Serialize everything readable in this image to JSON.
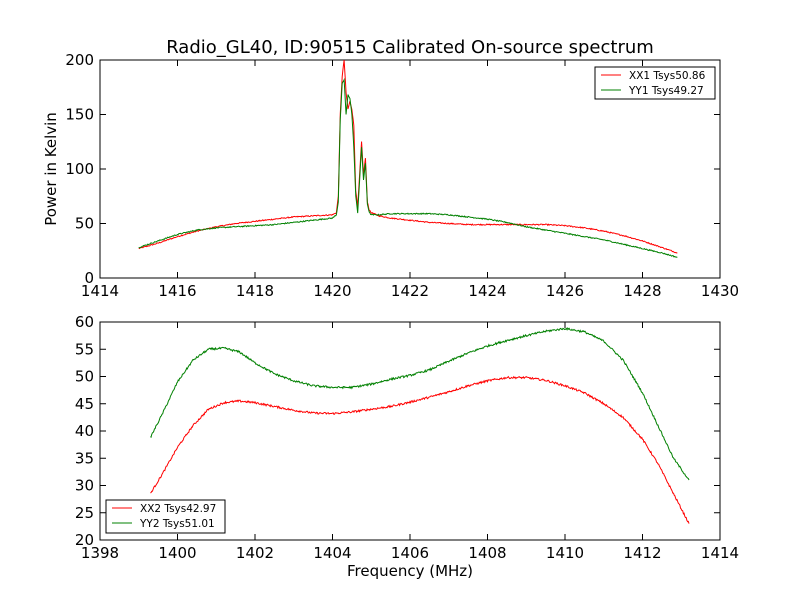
{
  "title": "Radio_GL40, ID:90515 Calibrated On-source spectrum",
  "chart_data": [
    {
      "type": "line",
      "title": "Radio_GL40, ID:90515 Calibrated On-source spectrum",
      "xlabel": "",
      "ylabel": "Power in Kelvin",
      "xlim": [
        1414,
        1430
      ],
      "ylim": [
        0,
        200
      ],
      "xticks": [
        "1414",
        "1416",
        "1418",
        "1420",
        "1422",
        "1424",
        "1426",
        "1428",
        "1430"
      ],
      "yticks": [
        "0",
        "50",
        "100",
        "150",
        "200"
      ],
      "legend_position": "top-right",
      "grid": false,
      "series": [
        {
          "name": "XX1 Tsys50.86",
          "color": "#ff0000",
          "x": [
            1415.0,
            1415.5,
            1416.0,
            1416.5,
            1417.0,
            1417.5,
            1418.0,
            1418.5,
            1419.0,
            1419.5,
            1420.0,
            1420.1,
            1420.15,
            1420.2,
            1420.25,
            1420.3,
            1420.35,
            1420.4,
            1420.45,
            1420.5,
            1420.55,
            1420.6,
            1420.65,
            1420.7,
            1420.75,
            1420.8,
            1420.85,
            1420.9,
            1420.95,
            1421.0,
            1421.2,
            1421.5,
            1422.0,
            1422.5,
            1423.0,
            1423.5,
            1424.0,
            1424.5,
            1425.0,
            1425.5,
            1426.0,
            1426.5,
            1427.0,
            1427.5,
            1428.0,
            1428.5,
            1428.9
          ],
          "y": [
            27,
            32,
            38,
            43,
            47,
            50,
            52,
            54,
            56,
            57,
            58,
            60,
            75,
            150,
            185,
            200,
            170,
            155,
            162,
            155,
            140,
            80,
            65,
            95,
            125,
            95,
            110,
            70,
            62,
            60,
            57,
            55,
            53,
            51,
            50,
            49,
            49,
            49,
            49,
            49,
            48,
            46,
            43,
            39,
            34,
            28,
            23
          ]
        },
        {
          "name": "YY1 Tsys49.27",
          "color": "#008000",
          "x": [
            1415.0,
            1415.5,
            1416.0,
            1416.5,
            1417.0,
            1417.5,
            1418.0,
            1418.5,
            1419.0,
            1419.5,
            1420.0,
            1420.1,
            1420.15,
            1420.2,
            1420.25,
            1420.3,
            1420.35,
            1420.4,
            1420.45,
            1420.5,
            1420.55,
            1420.6,
            1420.65,
            1420.7,
            1420.75,
            1420.8,
            1420.85,
            1420.9,
            1420.95,
            1421.0,
            1421.2,
            1421.5,
            1422.0,
            1422.5,
            1423.0,
            1423.5,
            1424.0,
            1424.5,
            1425.0,
            1425.5,
            1426.0,
            1426.5,
            1427.0,
            1427.5,
            1428.0,
            1428.5,
            1428.9
          ],
          "y": [
            28,
            34,
            40,
            44,
            46,
            47,
            48,
            49,
            51,
            53,
            55,
            58,
            70,
            145,
            178,
            182,
            150,
            168,
            165,
            150,
            120,
            75,
            60,
            90,
            120,
            90,
            105,
            68,
            60,
            58,
            58,
            59,
            59,
            59,
            58,
            56,
            54,
            51,
            47,
            44,
            41,
            38,
            35,
            31,
            27,
            23,
            19
          ]
        }
      ]
    },
    {
      "type": "line",
      "title": "",
      "xlabel": "Frequency (MHz)",
      "ylabel": "",
      "xlim": [
        1398,
        1414
      ],
      "ylim": [
        20,
        60
      ],
      "xticks": [
        "1398",
        "1400",
        "1402",
        "1404",
        "1406",
        "1408",
        "1410",
        "1412",
        "1414"
      ],
      "yticks": [
        "20",
        "25",
        "30",
        "35",
        "40",
        "45",
        "50",
        "55",
        "60"
      ],
      "legend_position": "bottom-left",
      "grid": false,
      "series": [
        {
          "name": "XX2 Tsys42.97",
          "color": "#ff0000",
          "x": [
            1399.3,
            1399.6,
            1400.0,
            1400.4,
            1400.8,
            1401.2,
            1401.6,
            1402.0,
            1402.5,
            1403.0,
            1403.5,
            1404.0,
            1404.5,
            1405.0,
            1405.5,
            1406.0,
            1406.5,
            1407.0,
            1407.5,
            1408.0,
            1408.5,
            1409.0,
            1409.5,
            1410.0,
            1410.5,
            1411.0,
            1411.5,
            1412.0,
            1412.4,
            1412.8,
            1413.2
          ],
          "y": [
            28.5,
            32,
            37,
            41,
            44,
            45.2,
            45.5,
            45.2,
            44.5,
            43.8,
            43.3,
            43.2,
            43.5,
            44,
            44.5,
            45.3,
            46.2,
            47.2,
            48.3,
            49.2,
            49.8,
            49.8,
            49.3,
            48.3,
            47,
            45,
            42.5,
            38.5,
            34,
            28.5,
            23
          ]
        },
        {
          "name": "YY2 Tsys51.01",
          "color": "#008000",
          "x": [
            1399.3,
            1399.6,
            1400.0,
            1400.4,
            1400.8,
            1401.2,
            1401.6,
            1402.0,
            1402.5,
            1403.0,
            1403.5,
            1404.0,
            1404.5,
            1405.0,
            1405.5,
            1406.0,
            1406.5,
            1407.0,
            1407.5,
            1408.0,
            1408.5,
            1409.0,
            1409.5,
            1410.0,
            1410.5,
            1411.0,
            1411.5,
            1412.0,
            1412.4,
            1412.8,
            1413.2
          ],
          "y": [
            38.8,
            43,
            49,
            53,
            55,
            55.2,
            54.5,
            52.5,
            50.5,
            49.2,
            48.3,
            48,
            48,
            48.6,
            49.5,
            50.2,
            51.2,
            52.8,
            54.3,
            55.6,
            56.6,
            57.5,
            58.3,
            58.8,
            58.2,
            56.5,
            53,
            47,
            41,
            35,
            31
          ]
        }
      ]
    }
  ]
}
